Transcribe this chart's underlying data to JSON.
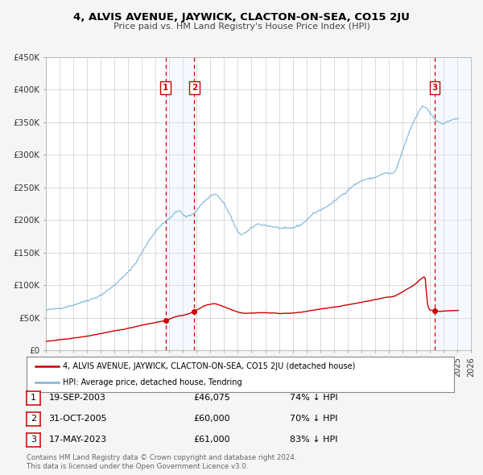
{
  "title": "4, ALVIS AVENUE, JAYWICK, CLACTON-ON-SEA, CO15 2JU",
  "subtitle": "Price paid vs. HM Land Registry's House Price Index (HPI)",
  "hpi_label": "HPI: Average price, detached house, Tendring",
  "property_label": "4, ALVIS AVENUE, JAYWICK, CLACTON-ON-SEA, CO15 2JU (detached house)",
  "footer1": "Contains HM Land Registry data © Crown copyright and database right 2024.",
  "footer2": "This data is licensed under the Open Government Licence v3.0.",
  "transactions": [
    {
      "num": 1,
      "date": "19-SEP-2003",
      "price": "£46,075",
      "pct": "74% ↓ HPI",
      "year": 2003.72,
      "value": 46075
    },
    {
      "num": 2,
      "date": "31-OCT-2005",
      "price": "£60,000",
      "pct": "70% ↓ HPI",
      "year": 2005.83,
      "value": 60000
    },
    {
      "num": 3,
      "date": "17-MAY-2023",
      "price": "£61,000",
      "pct": "83% ↓ HPI",
      "year": 2023.37,
      "value": 61000
    }
  ],
  "hpi_color": "#7ab4d8",
  "price_color": "#cc0000",
  "shading_color": "#ddeeff",
  "background_color": "#f5f5f5",
  "plot_bg": "#ffffff",
  "ylim": [
    0,
    450000
  ],
  "xlim_start": 1995.0,
  "xlim_end": 2026.0,
  "yticks": [
    0,
    50000,
    100000,
    150000,
    200000,
    250000,
    300000,
    350000,
    400000,
    450000
  ],
  "ytick_labels": [
    "£0",
    "£50K",
    "£100K",
    "£150K",
    "£200K",
    "£250K",
    "£300K",
    "£350K",
    "£400K",
    "£450K"
  ]
}
